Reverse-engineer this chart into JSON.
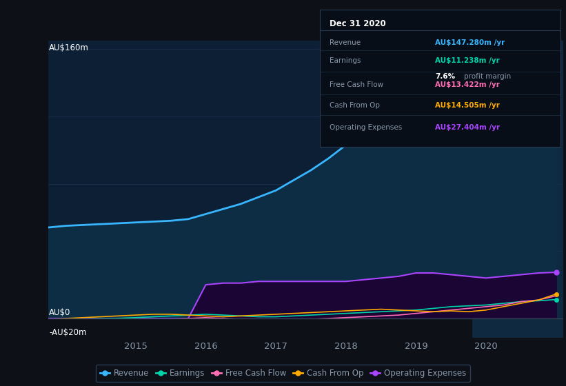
{
  "bg_color": "#0d1117",
  "plot_bg_color": "#0d1f35",
  "grid_color": "#1e3050",
  "text_color": "#8898aa",
  "white": "#ffffff",
  "years": [
    2013.75,
    2014.0,
    2014.25,
    2014.5,
    2014.75,
    2015.0,
    2015.25,
    2015.5,
    2015.75,
    2016.0,
    2016.25,
    2016.5,
    2016.75,
    2017.0,
    2017.25,
    2017.5,
    2017.75,
    2018.0,
    2018.25,
    2018.5,
    2018.75,
    2019.0,
    2019.25,
    2019.5,
    2019.75,
    2020.0,
    2020.25,
    2020.5,
    2020.75,
    2021.0
  ],
  "revenue": [
    54,
    55,
    55.5,
    56,
    56.5,
    57,
    57.5,
    58,
    59,
    62,
    65,
    68,
    72,
    76,
    82,
    88,
    95,
    103,
    110,
    116,
    121,
    124,
    127,
    130,
    133,
    136,
    139,
    142,
    145,
    147.28
  ],
  "earnings": [
    -1,
    -0.5,
    -0.3,
    -0.1,
    0.1,
    0.5,
    1.0,
    1.5,
    2.0,
    2.5,
    2.0,
    1.5,
    1.0,
    1.0,
    1.5,
    2.0,
    2.5,
    3.0,
    3.5,
    4.0,
    4.5,
    5.0,
    6.0,
    7.0,
    7.5,
    8.0,
    9.0,
    10.0,
    10.5,
    11.238
  ],
  "free_cash_flow": [
    -2,
    -1.5,
    -1,
    -0.5,
    -0.3,
    -0.5,
    -1.0,
    -0.5,
    0.0,
    0.5,
    0.0,
    -0.5,
    -1.0,
    -0.5,
    -1.0,
    -0.5,
    0.0,
    0.5,
    1.0,
    1.5,
    2.0,
    3.0,
    4.0,
    5.0,
    6.0,
    7.0,
    8.0,
    10.0,
    11.0,
    13.422
  ],
  "cash_from_op": [
    -0.5,
    0.0,
    0.5,
    1.0,
    1.5,
    2.0,
    2.5,
    2.5,
    2.0,
    1.5,
    1.0,
    1.5,
    2.0,
    2.5,
    3.0,
    3.5,
    4.0,
    4.5,
    5.0,
    5.5,
    5.0,
    4.5,
    4.0,
    4.5,
    4.0,
    5.0,
    7.0,
    9.0,
    11.0,
    14.505
  ],
  "operating_expenses": [
    0,
    0,
    0,
    0,
    0,
    0,
    0,
    0,
    0,
    20,
    21,
    21,
    22,
    22,
    22,
    22,
    22,
    22,
    23,
    24,
    25,
    27,
    27,
    26,
    25,
    24,
    25,
    26,
    27,
    27.404
  ],
  "revenue_color": "#38b6ff",
  "revenue_fill_color": "#0d2d45",
  "earnings_color": "#00d4aa",
  "free_cash_flow_color": "#ff6eb4",
  "cash_from_op_color": "#ffaa00",
  "operating_expenses_color": "#aa44ff",
  "operating_expenses_fill_color": "#1a0535",
  "highlight_x_start": 2019.8,
  "highlight_x_end": 2021.1,
  "highlight_color": "#0f2940",
  "info_box": {
    "date": "Dec 31 2020",
    "rows": [
      {
        "label": "Revenue",
        "value": "AU$147.280m",
        "vcolor": "#38b6ff",
        "extra": null
      },
      {
        "label": "Earnings",
        "value": "AU$11.238m",
        "vcolor": "#00d4aa",
        "extra": "7.6% profit margin"
      },
      {
        "label": "Free Cash Flow",
        "value": "AU$13.422m",
        "vcolor": "#ff6eb4",
        "extra": null
      },
      {
        "label": "Cash From Op",
        "value": "AU$14.505m",
        "vcolor": "#ffaa00",
        "extra": null
      },
      {
        "label": "Operating Expenses",
        "value": "AU$27.404m",
        "vcolor": "#aa44ff",
        "extra": null
      }
    ]
  },
  "legend": [
    {
      "label": "Revenue",
      "color": "#38b6ff"
    },
    {
      "label": "Earnings",
      "color": "#00d4aa"
    },
    {
      "label": "Free Cash Flow",
      "color": "#ff6eb4"
    },
    {
      "label": "Cash From Op",
      "color": "#ffaa00"
    },
    {
      "label": "Operating Expenses",
      "color": "#aa44ff"
    }
  ],
  "xlim": [
    2013.75,
    2021.1
  ],
  "ylim_plot": [
    0,
    165
  ],
  "ylim_sub": [
    -20,
    0
  ],
  "xticks": [
    2015,
    2016,
    2017,
    2018,
    2019,
    2020
  ]
}
